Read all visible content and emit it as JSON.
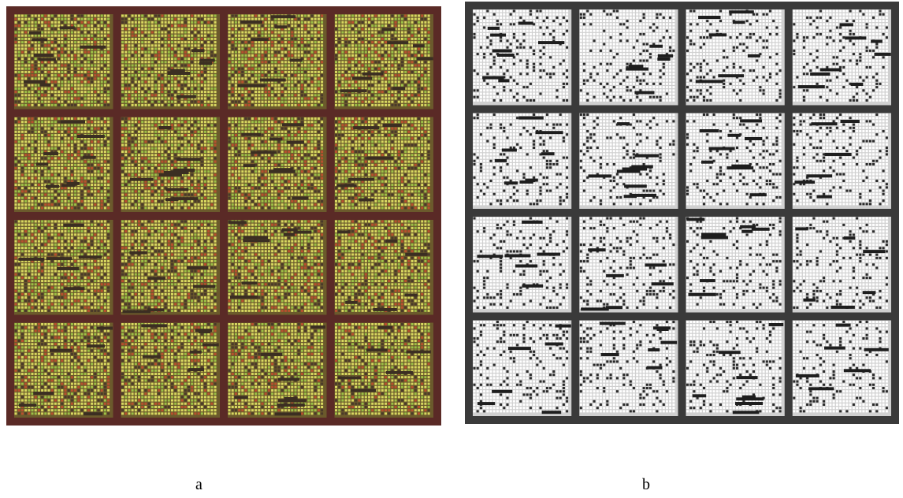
{
  "figure": {
    "panels": [
      {
        "id": "a",
        "label": "a",
        "description_kind": "color microarray scan",
        "grid_rows": 4,
        "grid_cols": 4,
        "colors": {
          "frame": "#5a2a26",
          "spot_yellow": "#d8d860",
          "spot_green": "#9cc046",
          "spot_red": "#b8502e",
          "spot_dark": "#4a3a2a"
        }
      },
      {
        "id": "b",
        "label": "b",
        "description_kind": "binarized microarray image",
        "grid_rows": 4,
        "grid_cols": 4,
        "colors": {
          "frame": "#3a3a3a",
          "spot_light": "#ffffff",
          "spot_dark": "#2a2a2a"
        }
      }
    ]
  }
}
